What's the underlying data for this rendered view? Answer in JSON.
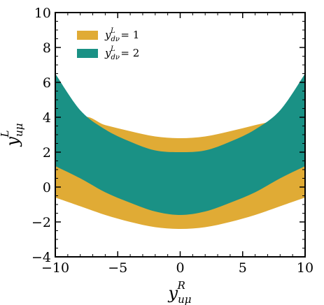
{
  "chart_data": {
    "type": "area",
    "xlim": [
      -10,
      10
    ],
    "ylim": [
      -4,
      10
    ],
    "x_ticks": [
      -10,
      -5,
      0,
      5,
      10
    ],
    "y_ticks": [
      -4,
      -2,
      0,
      2,
      4,
      6,
      8,
      10
    ],
    "xlabel": {
      "base": "y",
      "sub": "uμ",
      "sup": "R"
    },
    "ylabel": {
      "base": "y",
      "sub": "uμ",
      "sup": "L"
    },
    "grid": false,
    "legend_placement": "top-left",
    "series": [
      {
        "name": "y_dν^L = 1",
        "legend": {
          "base": "y",
          "sub": "dν",
          "sup": "L",
          "rhs": " = 1"
        },
        "color": "#e0ab35",
        "x": [
          -10,
          -8,
          -6,
          -4,
          -2,
          0,
          2,
          4,
          6,
          8,
          10
        ],
        "upper": [
          1.2,
          3.9,
          3.55,
          3.2,
          2.9,
          2.8,
          2.9,
          3.2,
          3.55,
          3.9,
          4.5
        ],
        "lower": [
          -0.6,
          -1.1,
          -1.6,
          -2.0,
          -2.3,
          -2.4,
          -2.3,
          -2.0,
          -1.6,
          -1.1,
          -0.6
        ]
      },
      {
        "name": "y_dν^L = 2",
        "legend": {
          "base": "y",
          "sub": "dν",
          "sup": "L",
          "rhs": " = 2"
        },
        "color": "#1a9185",
        "x": [
          -10,
          -8,
          -6,
          -4,
          -2,
          0,
          2,
          4,
          6,
          8,
          10
        ],
        "upper": [
          6.5,
          4.4,
          3.3,
          2.6,
          2.1,
          2.0,
          2.1,
          2.6,
          3.3,
          4.4,
          6.5
        ],
        "lower": [
          1.2,
          0.5,
          -0.3,
          -0.9,
          -1.4,
          -1.6,
          -1.4,
          -0.9,
          -0.3,
          0.5,
          1.2
        ]
      }
    ]
  }
}
